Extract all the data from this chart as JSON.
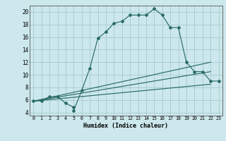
{
  "xlabel": "Humidex (Indice chaleur)",
  "bg_color": "#cce8ec",
  "grid_color": "#aacdd4",
  "line_color": "#2a6b68",
  "xlim": [
    -0.5,
    23.5
  ],
  "ylim": [
    3.5,
    21.0
  ],
  "yticks": [
    4,
    6,
    8,
    10,
    12,
    14,
    16,
    18,
    20
  ],
  "xticks": [
    0,
    1,
    2,
    3,
    4,
    5,
    6,
    7,
    8,
    9,
    10,
    11,
    12,
    13,
    14,
    15,
    16,
    17,
    18,
    19,
    20,
    21,
    22,
    23
  ],
  "series1_x": [
    0,
    1,
    2,
    3,
    4,
    5,
    5,
    6,
    7,
    8,
    9,
    10,
    11,
    12,
    13,
    14,
    15,
    16,
    17,
    18,
    19,
    20,
    21,
    22,
    23
  ],
  "series1_y": [
    5.8,
    5.9,
    6.5,
    6.5,
    5.5,
    4.8,
    4.3,
    7.5,
    11.0,
    15.8,
    16.8,
    18.2,
    18.5,
    19.5,
    19.5,
    19.5,
    20.5,
    19.5,
    17.5,
    17.5,
    12.0,
    10.5,
    10.5,
    9.0,
    9.0
  ],
  "series2_x": [
    0,
    22
  ],
  "series2_y": [
    5.8,
    8.5
  ],
  "series3_x": [
    0,
    22
  ],
  "series3_y": [
    5.8,
    10.5
  ],
  "series4_x": [
    0,
    22
  ],
  "series4_y": [
    5.8,
    12.0
  ]
}
